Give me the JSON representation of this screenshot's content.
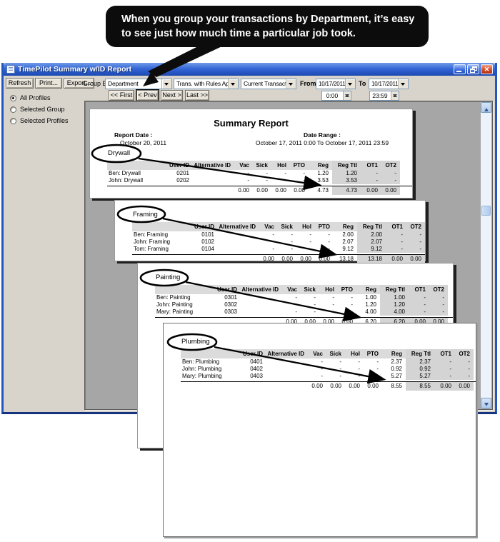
{
  "callout": {
    "text": "When you group your transactions by Department, it’s easy to see just how much time a particular job took."
  },
  "window": {
    "title": "TimePilot Summary w/ID Report",
    "controls": [
      "minimize-icon",
      "restore-icon",
      "close-icon"
    ]
  },
  "toolbar": {
    "refresh": "Refresh",
    "print": "Print...",
    "export": "Export...",
    "group_by_label": "Group By:",
    "group_by_value": "Department",
    "rules_value": "Trans. with Rules Applied",
    "transactions_value": "Current Transactions",
    "from_label": "From",
    "from_date": "10/17/2011",
    "to_label": "To",
    "to_date": "10/17/2011",
    "from_time": "0:00",
    "to_time": "23:59",
    "nav": {
      "first": "<< First",
      "prev": "< Prev",
      "next": "Next >",
      "last": "Last >>"
    }
  },
  "sidebar": {
    "options": [
      {
        "label": "All Profiles",
        "selected": true
      },
      {
        "label": "Selected Group",
        "selected": false
      },
      {
        "label": "Selected Profiles",
        "selected": false
      }
    ]
  },
  "report": {
    "title": "Summary Report",
    "report_date_label": "Report Date :",
    "report_date": "October 20, 2011",
    "date_range_label": "Date Range :",
    "date_range": "October 17, 2011 0:00  To  October 17, 2011 23:59",
    "columns": [
      "User ID",
      "Alternative ID",
      "Vac",
      "Sick",
      "Hol",
      "PTO",
      "Reg",
      "Reg Ttl",
      "OT1",
      "OT2"
    ],
    "pages": [
      {
        "department": "Drywall",
        "rows": [
          [
            "Ben: Drywall",
            "0201",
            "",
            "-",
            "-",
            "-",
            "-",
            "1.20",
            "1.20",
            "-",
            "-"
          ],
          [
            "John: Drywall",
            "0202",
            "",
            "-",
            "-",
            "-",
            "-",
            "3.53",
            "3.53",
            "-",
            "-"
          ]
        ],
        "totals": [
          "0.00",
          "0.00",
          "0.00",
          "0.00",
          "4.73",
          "4.73",
          "0.00",
          "0.00"
        ]
      },
      {
        "department": "Framing",
        "rows": [
          [
            "Ben: Framing",
            "0101",
            "",
            "-",
            "-",
            "-",
            "-",
            "2.00",
            "2.00",
            "-",
            "-"
          ],
          [
            "John: Framing",
            "0102",
            "",
            "-",
            "-",
            "-",
            "-",
            "2.07",
            "2.07",
            "-",
            "-"
          ],
          [
            "Tom: Framing",
            "0104",
            "",
            "-",
            "-",
            "-",
            "-",
            "9.12",
            "9.12",
            "-",
            "-"
          ]
        ],
        "totals": [
          "0.00",
          "0.00",
          "0.00",
          "0.00",
          "13.18",
          "13.18",
          "0.00",
          "0.00"
        ]
      },
      {
        "department": "Painting",
        "rows": [
          [
            "Ben: Painting",
            "0301",
            "",
            "-",
            "-",
            "-",
            "-",
            "1.00",
            "1.00",
            "-",
            "-"
          ],
          [
            "John: Painting",
            "0302",
            "",
            "-",
            "-",
            "-",
            "-",
            "1.20",
            "1.20",
            "-",
            "-"
          ],
          [
            "Mary: Painting",
            "0303",
            "",
            "-",
            "-",
            "-",
            "-",
            "4.00",
            "4.00",
            "-",
            "-"
          ]
        ],
        "totals": [
          "0.00",
          "0.00",
          "0.00",
          "0.00",
          "6.20",
          "6.20",
          "0.00",
          "0.00"
        ]
      },
      {
        "department": "Plumbing",
        "rows": [
          [
            "Ben: Plumbing",
            "0401",
            "",
            "-",
            "-",
            "-",
            "-",
            "2.37",
            "2.37",
            "-",
            "-"
          ],
          [
            "John: Plumbing",
            "0402",
            "",
            "-",
            "-",
            "-",
            "-",
            "0.92",
            "0.92",
            "-",
            "-"
          ],
          [
            "Mary: Plumbing",
            "0403",
            "",
            "-",
            "-",
            "-",
            "-",
            "5.27",
            "5.27",
            "-",
            "-"
          ]
        ],
        "totals": [
          "0.00",
          "0.00",
          "0.00",
          "0.00",
          "8.55",
          "8.55",
          "0.00",
          "0.00"
        ]
      }
    ]
  },
  "colors": {
    "titlebar_blue": "#3566d6",
    "close_red": "#d44e28",
    "client_gray": "#d8d4cc",
    "viewport_gray": "#a6a6a6",
    "table_header_gray": "#dbdbdb",
    "callout_black": "#0c0c0c"
  }
}
